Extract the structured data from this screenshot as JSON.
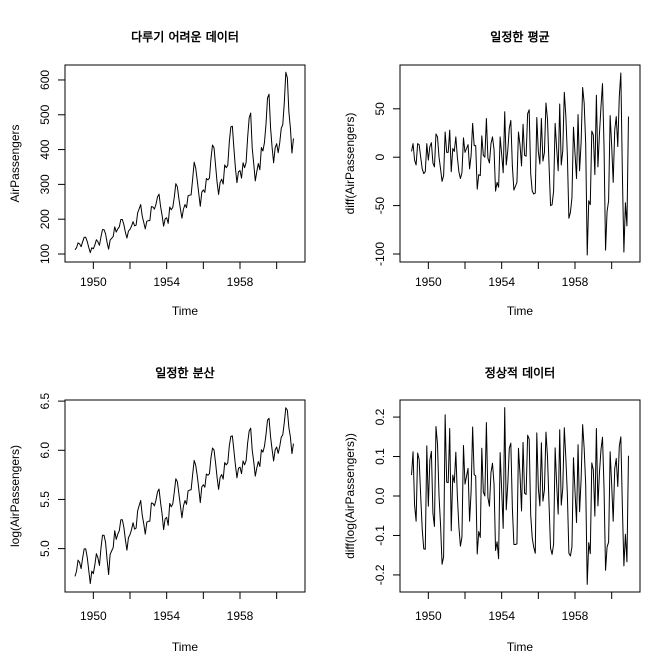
{
  "chart_data": [
    {
      "type": "line",
      "title": "다루기 어려운 데이터",
      "xlabel": "Time",
      "ylabel": "AirPassengers",
      "xlim": [
        1949,
        1961
      ],
      "ylim": [
        100,
        620
      ],
      "xticks": [
        1950,
        1954,
        1958
      ],
      "yticks": [
        100,
        200,
        300,
        400,
        500,
        600
      ],
      "ytick_labels": [
        "100",
        "200",
        "300",
        "400",
        "500",
        "600"
      ],
      "x_start": 1949,
      "x_step_months": 1,
      "y": [
        112,
        118,
        132,
        129,
        121,
        135,
        148,
        148,
        136,
        119,
        104,
        118,
        115,
        126,
        141,
        135,
        125,
        149,
        170,
        170,
        158,
        133,
        114,
        140,
        145,
        150,
        178,
        163,
        172,
        178,
        199,
        199,
        184,
        162,
        146,
        166,
        171,
        180,
        193,
        181,
        183,
        218,
        230,
        242,
        209,
        191,
        172,
        194,
        196,
        196,
        236,
        235,
        229,
        243,
        264,
        272,
        237,
        211,
        180,
        201,
        204,
        188,
        235,
        227,
        234,
        264,
        302,
        293,
        259,
        229,
        203,
        229,
        242,
        233,
        267,
        269,
        270,
        315,
        364,
        347,
        312,
        274,
        237,
        278,
        284,
        277,
        317,
        313,
        318,
        374,
        413,
        405,
        355,
        306,
        271,
        306,
        315,
        301,
        356,
        348,
        355,
        422,
        465,
        467,
        404,
        347,
        305,
        336,
        340,
        318,
        362,
        348,
        363,
        435,
        491,
        505,
        404,
        359,
        310,
        337,
        360,
        342,
        406,
        396,
        420,
        472,
        548,
        559,
        463,
        407,
        362,
        405,
        417,
        391,
        419,
        461,
        472,
        535,
        622,
        606,
        508,
        461,
        390,
        432
      ]
    },
    {
      "type": "line",
      "title": "일정한 평균",
      "xlabel": "Time",
      "ylabel": "diff(AirPassengers)",
      "xlim": [
        1949,
        1961
      ],
      "ylim": [
        -100,
        87
      ],
      "xticks": [
        1950,
        1954,
        1958
      ],
      "yticks": [
        -100,
        -50,
        0,
        50
      ],
      "ytick_labels": [
        "-100",
        "-50",
        "0",
        "50"
      ],
      "x_start": 1949.0833,
      "x_step_months": 1,
      "y": [
        6,
        14,
        -3,
        -8,
        14,
        13,
        0,
        -12,
        -17,
        -15,
        14,
        -3,
        11,
        15,
        -6,
        -10,
        24,
        21,
        0,
        -12,
        -25,
        -19,
        26,
        5,
        5,
        28,
        -15,
        9,
        6,
        21,
        0,
        -15,
        -22,
        -16,
        20,
        5,
        9,
        13,
        -12,
        2,
        35,
        12,
        12,
        -33,
        -18,
        -19,
        22,
        2,
        0,
        40,
        -1,
        -6,
        14,
        21,
        8,
        -35,
        -26,
        -31,
        21,
        3,
        -16,
        47,
        -8,
        7,
        30,
        38,
        -9,
        -34,
        -30,
        -26,
        26,
        13,
        -9,
        34,
        2,
        1,
        45,
        49,
        -17,
        -35,
        -38,
        -37,
        41,
        6,
        -7,
        40,
        -4,
        5,
        56,
        39,
        -8,
        -50,
        -49,
        -35,
        35,
        9,
        -14,
        55,
        -8,
        7,
        67,
        43,
        2,
        -63,
        -57,
        -42,
        31,
        4,
        -22,
        44,
        -14,
        15,
        72,
        56,
        14,
        -101,
        -45,
        -49,
        27,
        23,
        -18,
        64,
        -10,
        24,
        52,
        76,
        11,
        -96,
        -56,
        -45,
        43,
        12,
        -26,
        28,
        42,
        11,
        63,
        87,
        -16,
        -98,
        -47,
        -71,
        42
      ]
    },
    {
      "type": "line",
      "title": "일정한 분산",
      "xlabel": "Time",
      "ylabel": "log(AirPassengers)",
      "xlim": [
        1949,
        1961
      ],
      "ylim": [
        4.64,
        6.43
      ],
      "xticks": [
        1950,
        1954,
        1958
      ],
      "yticks": [
        5.0,
        5.5,
        6.0,
        6.5
      ],
      "ytick_labels": [
        "5.0",
        "5.5",
        "6.0",
        "6.5"
      ],
      "x_start": 1949,
      "x_step_months": 1,
      "y": [
        4.718,
        4.771,
        4.883,
        4.86,
        4.796,
        4.905,
        4.997,
        4.997,
        4.913,
        4.779,
        4.644,
        4.771,
        4.745,
        4.836,
        4.949,
        4.905,
        4.828,
        5.004,
        5.136,
        5.136,
        5.063,
        4.89,
        4.736,
        4.942,
        4.977,
        5.011,
        5.182,
        5.094,
        5.147,
        5.182,
        5.293,
        5.293,
        5.215,
        5.088,
        4.984,
        5.112,
        5.142,
        5.193,
        5.263,
        5.198,
        5.209,
        5.384,
        5.438,
        5.489,
        5.342,
        5.252,
        5.147,
        5.268,
        5.278,
        5.278,
        5.464,
        5.46,
        5.434,
        5.493,
        5.576,
        5.606,
        5.468,
        5.352,
        5.193,
        5.303,
        5.318,
        5.236,
        5.46,
        5.425,
        5.455,
        5.576,
        5.71,
        5.68,
        5.557,
        5.434,
        5.313,
        5.434,
        5.489,
        5.451,
        5.587,
        5.595,
        5.598,
        5.753,
        5.897,
        5.849,
        5.743,
        5.613,
        5.468,
        5.628,
        5.649,
        5.624,
        5.759,
        5.746,
        5.762,
        5.924,
        6.023,
        6.004,
        5.872,
        5.724,
        5.602,
        5.724,
        5.753,
        5.707,
        5.875,
        5.852,
        5.872,
        6.045,
        6.142,
        6.146,
        6.001,
        5.849,
        5.72,
        5.817,
        5.829,
        5.762,
        5.892,
        5.852,
        5.894,
        6.075,
        6.196,
        6.225,
        6.001,
        5.883,
        5.737,
        5.82,
        5.886,
        5.835,
        6.006,
        5.981,
        6.04,
        6.157,
        6.306,
        6.326,
        6.138,
        6.009,
        5.892,
        6.004,
        6.033,
        5.969,
        6.038,
        6.133,
        6.157,
        6.283,
        6.433,
        6.407,
        6.23,
        6.133,
        5.966,
        6.068
      ]
    },
    {
      "type": "line",
      "title": "정상적 데이터",
      "xlabel": "Time",
      "ylabel": "diff(log(AirPassengers))",
      "xlim": [
        1949,
        1961
      ],
      "ylim": [
        -0.223,
        0.223
      ],
      "xticks": [
        1950,
        1954,
        1958
      ],
      "yticks": [
        -0.2,
        -0.1,
        0.0,
        0.1,
        0.2
      ],
      "ytick_labels": [
        "-0.2",
        "-0.1",
        "0.0",
        "0.1",
        "0.2"
      ],
      "x_start": 1949.0833,
      "x_step_months": 1,
      "y": [
        0.053,
        0.112,
        -0.023,
        -0.064,
        0.109,
        0.092,
        0.0,
        -0.084,
        -0.134,
        -0.135,
        0.127,
        -0.026,
        0.091,
        0.113,
        -0.044,
        -0.077,
        0.176,
        0.132,
        0.0,
        -0.073,
        -0.173,
        -0.154,
        0.206,
        0.035,
        0.034,
        0.171,
        -0.088,
        0.053,
        0.034,
        0.111,
        0.0,
        -0.078,
        -0.127,
        -0.104,
        0.128,
        0.03,
        0.05,
        0.07,
        -0.064,
        0.011,
        0.175,
        0.054,
        0.051,
        -0.147,
        -0.09,
        -0.105,
        0.121,
        0.01,
        0.0,
        0.186,
        -0.004,
        -0.026,
        0.059,
        0.083,
        0.03,
        -0.138,
        -0.116,
        -0.159,
        0.11,
        0.015,
        -0.082,
        0.224,
        -0.035,
        0.03,
        0.121,
        0.134,
        -0.03,
        -0.123,
        -0.123,
        -0.121,
        0.121,
        0.055,
        -0.038,
        0.136,
        0.007,
        0.004,
        0.154,
        0.144,
        -0.048,
        -0.106,
        -0.13,
        -0.145,
        0.16,
        0.021,
        -0.025,
        0.135,
        -0.013,
        0.016,
        0.162,
        0.099,
        -0.02,
        -0.132,
        -0.148,
        -0.122,
        0.122,
        0.029,
        -0.046,
        0.168,
        -0.023,
        0.02,
        0.173,
        0.097,
        0.004,
        -0.145,
        -0.152,
        -0.129,
        0.097,
        0.012,
        -0.067,
        0.13,
        -0.04,
        0.042,
        0.181,
        0.121,
        0.029,
        -0.224,
        -0.118,
        -0.146,
        0.084,
        0.066,
        -0.051,
        0.171,
        -0.025,
        0.059,
        0.117,
        0.149,
        0.02,
        -0.188,
        -0.129,
        -0.117,
        0.112,
        0.029,
        -0.064,
        0.069,
        0.095,
        0.024,
        0.126,
        0.15,
        -0.026,
        -0.177,
        -0.097,
        -0.167,
        0.102
      ]
    }
  ]
}
